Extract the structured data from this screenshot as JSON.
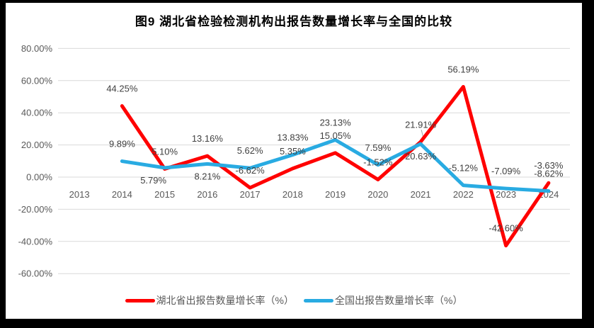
{
  "page": {
    "frame_color": "#000000",
    "background_color": "#ffffff"
  },
  "chart_data": {
    "type": "line",
    "title": "图9 湖北省检验检测机构出报告数量增长率与全国的比较",
    "categories": [
      "2013",
      "2014",
      "2015",
      "2016",
      "2017",
      "2018",
      "2019",
      "2020",
      "2021",
      "2022",
      "2023",
      "2024"
    ],
    "xlabel": "",
    "ylabel": "",
    "ylim": [
      -60,
      80
    ],
    "grid": true,
    "grid_color": "#d9d9d9",
    "axis_label_color": "#595959",
    "data_label_color": "#404040",
    "legend_position": "bottom",
    "y_axis": {
      "ticks": [
        {
          "value": 80,
          "label": "80.00%"
        },
        {
          "value": 60,
          "label": "60.00%"
        },
        {
          "value": 40,
          "label": "40.00%"
        },
        {
          "value": 20,
          "label": "20.00%"
        },
        {
          "value": 0,
          "label": "0.00%"
        },
        {
          "value": -20,
          "label": "-20.00%"
        },
        {
          "value": -40,
          "label": "-40.00%"
        },
        {
          "value": -60,
          "label": "-60.00%"
        }
      ]
    },
    "series": [
      {
        "name": "湖北省出报告数量增长率（%）",
        "color": "#ff0000",
        "values": [
          null,
          44.25,
          5.1,
          13.16,
          -6.62,
          5.35,
          15.05,
          -1.52,
          21.91,
          56.19,
          -42.6,
          -3.63
        ],
        "labels": [
          "",
          "44.25%",
          "5.10%",
          "13.16%",
          "-6.62%",
          "5.35%",
          "15.05%",
          "-1.52%",
          "21.91%",
          "56.19%",
          "-42.60%",
          "-3.63%"
        ],
        "label_pos": [
          "",
          "above",
          "above",
          "above",
          "above",
          "above",
          "above",
          "above",
          "above",
          "above",
          "above",
          "above"
        ],
        "label_dx": [
          0,
          0,
          0,
          0,
          0,
          0,
          0,
          0,
          0,
          0,
          0,
          0
        ]
      },
      {
        "name": "全国出报告数量增长率（%）",
        "color": "#29abe2",
        "values": [
          null,
          9.89,
          5.79,
          8.21,
          5.62,
          13.83,
          23.13,
          7.59,
          20.63,
          -5.12,
          -7.09,
          -8.62
        ],
        "labels": [
          "",
          "9.89%",
          "5.79%",
          "8.21%",
          "5.62%",
          "13.83%",
          "23.13%",
          "7.59%",
          "20.63%",
          "-5.12%",
          "-7.09%",
          "-8.62%"
        ],
        "label_pos": [
          "",
          "above",
          "below",
          "below",
          "above",
          "above",
          "above",
          "above",
          "below",
          "above",
          "above",
          "above"
        ],
        "label_dx": [
          0,
          0,
          -16,
          0,
          0,
          0,
          0,
          0,
          0,
          0,
          0,
          0
        ]
      }
    ]
  }
}
